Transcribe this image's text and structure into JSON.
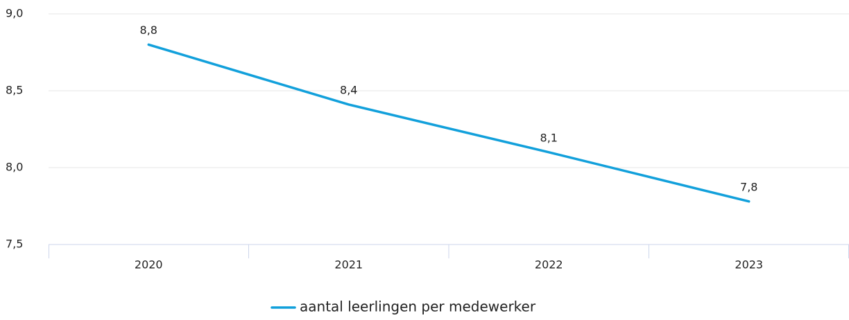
{
  "chart_data": {
    "type": "line",
    "categories": [
      "2020",
      "2021",
      "2022",
      "2023"
    ],
    "series": [
      {
        "name": "aantal leerlingen per medewerker",
        "color": "#12a0db",
        "values": [
          8.8,
          8.41,
          8.1,
          7.78
        ],
        "value_labels": [
          "8,8",
          "8,4",
          "8,1",
          "7,8"
        ]
      }
    ],
    "ylim": [
      7.5,
      9.0
    ],
    "yticks": [
      {
        "value": 7.5,
        "label": "7,5"
      },
      {
        "value": 8.0,
        "label": "8,0"
      },
      {
        "value": 8.5,
        "label": "8,5"
      },
      {
        "value": 9.0,
        "label": "9,0"
      }
    ],
    "grid": true,
    "legend": "bottom"
  }
}
